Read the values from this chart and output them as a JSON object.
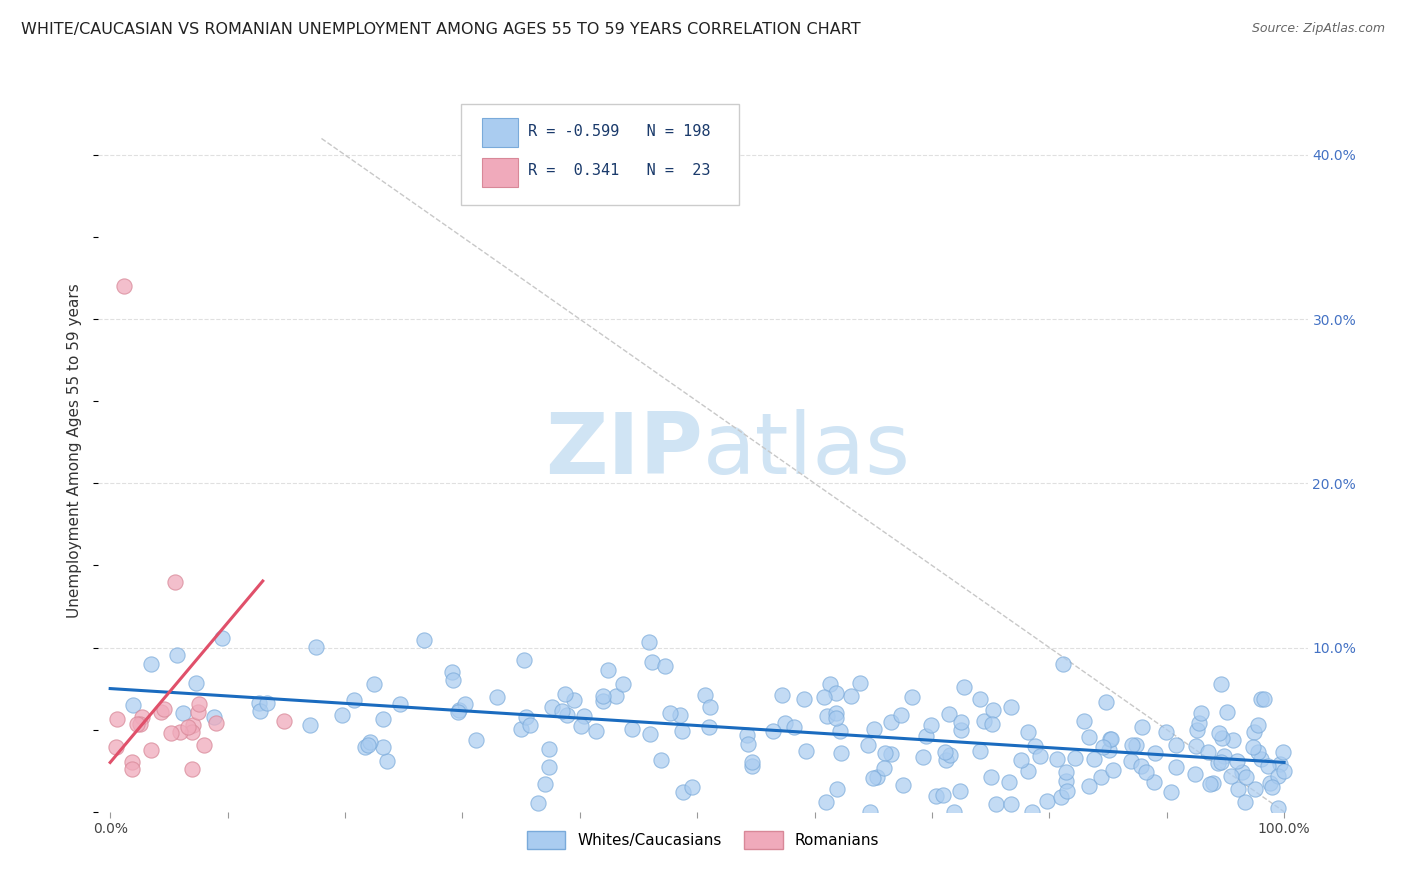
{
  "title": "WHITE/CAUCASIAN VS ROMANIAN UNEMPLOYMENT AMONG AGES 55 TO 59 YEARS CORRELATION CHART",
  "source": "Source: ZipAtlas.com",
  "ylabel": "Unemployment Among Ages 55 to 59 years",
  "x_tick_labels": [
    "0.0%",
    "",
    "",
    "",
    "",
    "",
    "",
    "",
    "",
    "",
    "100.0%"
  ],
  "x_tick_vals": [
    0,
    10,
    20,
    30,
    40,
    50,
    60,
    70,
    80,
    90,
    100
  ],
  "y_tick_labels_right": [
    "",
    "10.0%",
    "20.0%",
    "30.0%",
    "40.0%"
  ],
  "y_tick_vals": [
    0,
    10,
    20,
    30,
    40
  ],
  "ylim": [
    0,
    44
  ],
  "xlim": [
    -1,
    102
  ],
  "blue_R": -0.599,
  "blue_N": 198,
  "pink_R": 0.341,
  "pink_N": 23,
  "legend_labels": [
    "Whites/Caucasians",
    "Romanians"
  ],
  "blue_color": "#aaccf0",
  "pink_color": "#f0aabb",
  "blue_scatter_edge": "#7aaada",
  "pink_scatter_edge": "#d88898",
  "blue_line_color": "#1a6bbf",
  "pink_line_color": "#e0506a",
  "diag_line_color": "#c8c8c8",
  "watermark_color": "#d0e4f4",
  "background_color": "#ffffff",
  "grid_color": "#e0e0e0",
  "grid_style": "--",
  "title_fontsize": 11.5,
  "axis_label_fontsize": 11,
  "tick_fontsize": 10,
  "legend_fontsize": 11,
  "right_tick_color": "#4472c4",
  "seed": 42
}
